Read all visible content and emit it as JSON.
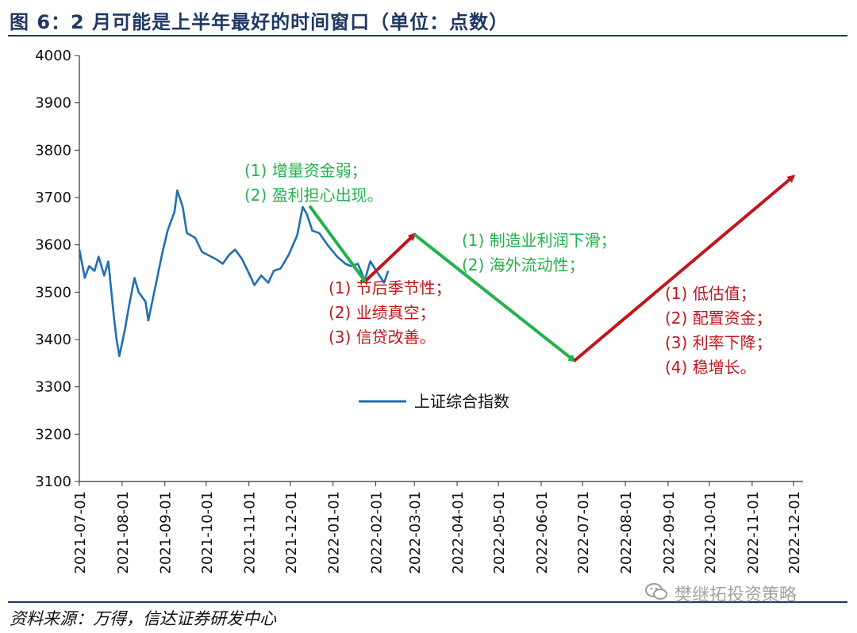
{
  "title": "图 6：2 月可能是上半年最好的时间窗口（单位：点数）",
  "source": "资料来源：万得，信达证券研发中心",
  "watermark": "樊继拓投资策略",
  "icons": {
    "watermark": "wechat-icon"
  },
  "colors": {
    "series": "#1f6fb4",
    "green": "#22b14c",
    "red": "#c0161c",
    "title": "#1f3864"
  },
  "chart_data": {
    "type": "line",
    "title": "图 6：2 月可能是上半年最好的时间窗口（单位：点数）",
    "xlabel": "",
    "ylabel": "",
    "ylim": [
      3100,
      4000
    ],
    "yticks": [
      3100,
      3200,
      3300,
      3400,
      3500,
      3600,
      3700,
      3800,
      3900,
      4000
    ],
    "x_ticks": [
      "2021-07-01",
      "2021-08-01",
      "2021-09-01",
      "2021-10-01",
      "2021-11-01",
      "2021-12-01",
      "2022-01-01",
      "2022-02-01",
      "2022-03-01",
      "2022-04-01",
      "2022-05-01",
      "2022-06-01",
      "2022-07-01",
      "2022-08-01",
      "2022-09-01",
      "2022-10-01",
      "2022-11-01",
      "2022-12-01"
    ],
    "legend": {
      "position": "center",
      "entries": [
        "上证综合指数"
      ]
    },
    "series": [
      {
        "name": "上证综合指数",
        "x": [
          "2021-07-01",
          "2021-07-05",
          "2021-07-08",
          "2021-07-12",
          "2021-07-15",
          "2021-07-19",
          "2021-07-22",
          "2021-07-26",
          "2021-07-28",
          "2021-07-30",
          "2021-08-03",
          "2021-08-06",
          "2021-08-10",
          "2021-08-13",
          "2021-08-18",
          "2021-08-20",
          "2021-08-25",
          "2021-08-30",
          "2021-09-03",
          "2021-09-08",
          "2021-09-10",
          "2021-09-14",
          "2021-09-17",
          "2021-09-23",
          "2021-09-28",
          "2021-10-08",
          "2021-10-13",
          "2021-10-18",
          "2021-10-22",
          "2021-10-27",
          "2021-11-01",
          "2021-11-05",
          "2021-11-10",
          "2021-11-15",
          "2021-11-19",
          "2021-11-24",
          "2021-11-30",
          "2021-12-06",
          "2021-12-10",
          "2021-12-13",
          "2021-12-17",
          "2021-12-22",
          "2021-12-28",
          "2022-01-04",
          "2022-01-10",
          "2022-01-14",
          "2022-01-19",
          "2022-01-24",
          "2022-01-28",
          "2022-02-07",
          "2022-02-10"
        ],
        "values": [
          3590,
          3530,
          3555,
          3545,
          3575,
          3535,
          3565,
          3450,
          3400,
          3365,
          3420,
          3470,
          3530,
          3500,
          3480,
          3440,
          3510,
          3580,
          3630,
          3670,
          3715,
          3680,
          3625,
          3615,
          3585,
          3570,
          3560,
          3580,
          3590,
          3570,
          3540,
          3515,
          3535,
          3520,
          3545,
          3550,
          3580,
          3620,
          3680,
          3665,
          3630,
          3625,
          3600,
          3575,
          3560,
          3555,
          3560,
          3525,
          3565,
          3520,
          3545
        ]
      }
    ],
    "arrows": [
      {
        "color": "green",
        "from": {
          "x": "2021-12-15",
          "y": 3682
        },
        "to": {
          "x": "2022-01-25",
          "y": 3520
        }
      },
      {
        "color": "red",
        "from": {
          "x": "2022-01-25",
          "y": 3525
        },
        "to": {
          "x": "2022-03-01",
          "y": 3622
        }
      },
      {
        "color": "green",
        "from": {
          "x": "2022-03-01",
          "y": 3622
        },
        "to": {
          "x": "2022-06-25",
          "y": 3355
        }
      },
      {
        "color": "red",
        "from": {
          "x": "2022-06-25",
          "y": 3355
        },
        "to": {
          "x": "2022-12-01",
          "y": 3745
        }
      }
    ],
    "annotations": [
      {
        "id": "anno-1",
        "color": "green",
        "lines": [
          "(1) 增量资金弱；",
          "(2) 盈利担心出现。"
        ]
      },
      {
        "id": "anno-2",
        "color": "red",
        "lines": [
          "(1) 节后季节性；",
          "(2) 业绩真空；",
          "(3) 信贷改善。"
        ]
      },
      {
        "id": "anno-3",
        "color": "green",
        "lines": [
          "(1) 制造业利润下滑；",
          "(2) 海外流动性；"
        ]
      },
      {
        "id": "anno-4",
        "color": "red",
        "lines": [
          "(1)  低估值；",
          "(2)  配置资金；",
          "(3)  利率下降；",
          "(4)  稳增长。"
        ]
      }
    ]
  }
}
